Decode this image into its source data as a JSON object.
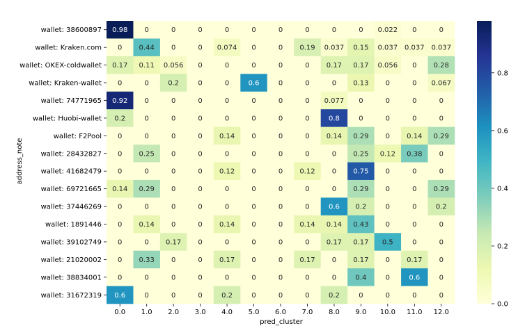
{
  "chart_data": {
    "type": "heatmap",
    "title": "",
    "xlabel": "pred_cluster",
    "ylabel": "address_note",
    "x_categories": [
      "0.0",
      "1.0",
      "2.0",
      "3.0",
      "4.0",
      "5.0",
      "6.0",
      "7.0",
      "8.0",
      "9.0",
      "10.0",
      "11.0",
      "12.0"
    ],
    "y_categories": [
      "wallet: 38600897",
      "wallet: Kraken.com",
      "wallet: OKEX-coldwallet",
      "wallet: Kraken-wallet",
      "wallet: 74771965",
      "wallet: Huobi-wallet",
      "wallet: F2Pool",
      "wallet: 28432827",
      "wallet: 41682479",
      "wallet: 69721665",
      "wallet: 37446269",
      "wallet: 1891446",
      "wallet: 39102749",
      "wallet: 21020002",
      "wallet: 38834001",
      "wallet: 31672319"
    ],
    "values": [
      [
        0.98,
        0,
        0,
        0,
        0,
        0,
        0,
        0,
        0,
        0,
        0.022,
        0,
        0
      ],
      [
        0,
        0.44,
        0,
        0,
        0.074,
        0,
        0,
        0.19,
        0.037,
        0.15,
        0.037,
        0.037,
        0.037
      ],
      [
        0.17,
        0.11,
        0.056,
        0,
        0,
        0,
        0,
        0,
        0.17,
        0.17,
        0.056,
        0,
        0.28
      ],
      [
        0,
        0,
        0.2,
        0,
        0,
        0.6,
        0,
        0,
        0,
        0.13,
        0,
        0,
        0.067
      ],
      [
        0.92,
        0,
        0,
        0,
        0,
        0,
        0,
        0,
        0.077,
        0,
        0,
        0,
        0
      ],
      [
        0.2,
        0,
        0,
        0,
        0,
        0,
        0,
        0,
        0.8,
        0,
        0,
        0,
        0
      ],
      [
        0,
        0,
        0,
        0,
        0.14,
        0,
        0,
        0,
        0.14,
        0.29,
        0,
        0.14,
        0.29
      ],
      [
        0,
        0.25,
        0,
        0,
        0,
        0,
        0,
        0,
        0,
        0.25,
        0.12,
        0.38,
        0
      ],
      [
        0,
        0,
        0,
        0,
        0.12,
        0,
        0,
        0.12,
        0,
        0.75,
        0,
        0,
        0
      ],
      [
        0.14,
        0.29,
        0,
        0,
        0,
        0,
        0,
        0,
        0,
        0.29,
        0,
        0,
        0.29
      ],
      [
        0,
        0,
        0,
        0,
        0,
        0,
        0,
        0,
        0.6,
        0.2,
        0,
        0,
        0.2
      ],
      [
        0,
        0.14,
        0,
        0,
        0.14,
        0,
        0,
        0.14,
        0.14,
        0.43,
        0,
        0,
        0
      ],
      [
        0,
        0,
        0.17,
        0,
        0,
        0,
        0,
        0,
        0.17,
        0.17,
        0.5,
        0,
        0
      ],
      [
        0,
        0.33,
        0,
        0,
        0.17,
        0,
        0,
        0.17,
        0,
        0.17,
        0,
        0.17,
        0
      ],
      [
        0,
        0,
        0,
        0,
        0,
        0,
        0,
        0,
        0,
        0.4,
        0,
        0.6,
        0
      ],
      [
        0.6,
        0,
        0,
        0,
        0.2,
        0,
        0,
        0,
        0.2,
        0,
        0,
        0,
        0
      ]
    ],
    "value_labels": [
      [
        "0.98",
        "0",
        "0",
        "0",
        "0",
        "0",
        "0",
        "0",
        "0",
        "0",
        "0.022",
        "0",
        "0"
      ],
      [
        "0",
        "0.44",
        "0",
        "0",
        "0.074",
        "0",
        "0",
        "0.19",
        "0.037",
        "0.15",
        "0.037",
        "0.037",
        "0.037"
      ],
      [
        "0.17",
        "0.11",
        "0.056",
        "0",
        "0",
        "0",
        "0",
        "0",
        "0.17",
        "0.17",
        "0.056",
        "0",
        "0.28"
      ],
      [
        "0",
        "0",
        "0.2",
        "0",
        "0",
        "0.6",
        "0",
        "0",
        "0",
        "0.13",
        "0",
        "0",
        "0.067"
      ],
      [
        "0.92",
        "0",
        "0",
        "0",
        "0",
        "0",
        "0",
        "0",
        "0.077",
        "0",
        "0",
        "0",
        "0"
      ],
      [
        "0.2",
        "0",
        "0",
        "0",
        "0",
        "0",
        "0",
        "0",
        "0.8",
        "0",
        "0",
        "0",
        "0"
      ],
      [
        "0",
        "0",
        "0",
        "0",
        "0.14",
        "0",
        "0",
        "0",
        "0.14",
        "0.29",
        "0",
        "0.14",
        "0.29"
      ],
      [
        "0",
        "0.25",
        "0",
        "0",
        "0",
        "0",
        "0",
        "0",
        "0",
        "0.25",
        "0.12",
        "0.38",
        "0"
      ],
      [
        "0",
        "0",
        "0",
        "0",
        "0.12",
        "0",
        "0",
        "0.12",
        "0",
        "0.75",
        "0",
        "0",
        "0"
      ],
      [
        "0.14",
        "0.29",
        "0",
        "0",
        "0",
        "0",
        "0",
        "0",
        "0",
        "0.29",
        "0",
        "0",
        "0.29"
      ],
      [
        "0",
        "0",
        "0",
        "0",
        "0",
        "0",
        "0",
        "0",
        "0.6",
        "0.2",
        "0",
        "0",
        "0.2"
      ],
      [
        "0",
        "0.14",
        "0",
        "0",
        "0.14",
        "0",
        "0",
        "0.14",
        "0.14",
        "0.43",
        "0",
        "0",
        "0"
      ],
      [
        "0",
        "0",
        "0.17",
        "0",
        "0",
        "0",
        "0",
        "0",
        "0.17",
        "0.17",
        "0.5",
        "0",
        "0"
      ],
      [
        "0",
        "0.33",
        "0",
        "0",
        "0.17",
        "0",
        "0",
        "0.17",
        "0",
        "0.17",
        "0",
        "0.17",
        "0"
      ],
      [
        "0",
        "0",
        "0",
        "0",
        "0",
        "0",
        "0",
        "0",
        "0",
        "0.4",
        "0",
        "0.6",
        "0"
      ],
      [
        "0.6",
        "0",
        "0",
        "0",
        "0.2",
        "0",
        "0",
        "0",
        "0.2",
        "0",
        "0",
        "0",
        "0"
      ]
    ],
    "colorbar": {
      "range": [
        0,
        0.98
      ],
      "ticks": [
        0.0,
        0.2,
        0.4,
        0.6,
        0.8
      ],
      "tick_labels": [
        "0.0",
        "0.2",
        "0.4",
        "0.6",
        "0.8"
      ],
      "colormap": "YlGnBu"
    },
    "grid": false,
    "legend": "colorbar at right"
  }
}
